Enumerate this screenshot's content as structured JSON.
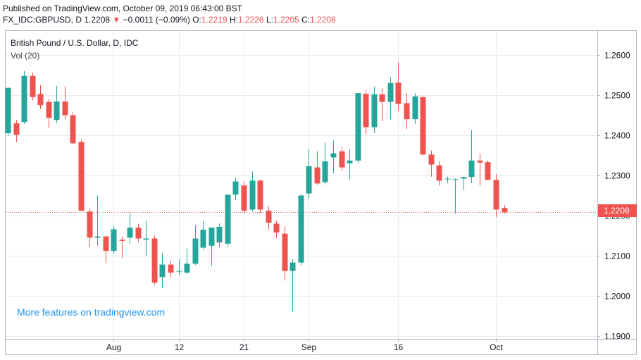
{
  "header": {
    "published": "Published on TradingView.com, October 09, 2019 06:43:00 BST",
    "symbol": "FX_IDC:GBPUSD, D",
    "last": "1.2208",
    "change_arrow": "▼",
    "change": "−0.0011 (−0.09%)",
    "o_label": "O:",
    "o_value": "1.2219",
    "h_label": "H:",
    "h_value": "1.2226",
    "l_label": "L:",
    "l_value": "1.2205",
    "c_label": "C:",
    "c_value": "1.2208"
  },
  "legend": {
    "title": "British Pound / U.S. Dollar, D, IDC",
    "volume": "Vol (20)"
  },
  "watermark": "More features on tradingview.com",
  "last_price_label": "1.2208",
  "colors": {
    "up": "#26a69a",
    "down": "#ef5350",
    "grid": "#e1ecf2",
    "axis": "#5d606b",
    "watermark": "#2196f3"
  },
  "chart_data": {
    "type": "candlestick",
    "title": "British Pound / U.S. Dollar, D, IDC",
    "ylim": [
      1.19,
      1.266
    ],
    "y_ticks": [
      1.19,
      1.2,
      1.21,
      1.22,
      1.23,
      1.24,
      1.25,
      1.26
    ],
    "y_tick_labels": [
      "1.1900",
      "1.2000",
      "1.2100",
      "1.2200",
      "1.2300",
      "1.2400",
      "1.2500",
      "1.2600"
    ],
    "x_ticks": [
      {
        "label": "Aug",
        "index": 13
      },
      {
        "label": "12",
        "index": 21
      },
      {
        "label": "21",
        "index": 29
      },
      {
        "label": "Sep",
        "index": 37
      },
      {
        "label": "16",
        "index": 48
      },
      {
        "label": "Oct",
        "index": 60
      }
    ],
    "last_price": 1.2208,
    "candles": [
      {
        "o": 1.2405,
        "h": 1.252,
        "l": 1.2398,
        "c": 1.2518
      },
      {
        "o": 1.243,
        "h": 1.2438,
        "l": 1.2383,
        "c": 1.2401
      },
      {
        "o": 1.2433,
        "h": 1.256,
        "l": 1.2428,
        "c": 1.2548
      },
      {
        "o": 1.2548,
        "h": 1.2556,
        "l": 1.2487,
        "c": 1.2495
      },
      {
        "o": 1.2503,
        "h": 1.2525,
        "l": 1.2465,
        "c": 1.2475
      },
      {
        "o": 1.2483,
        "h": 1.249,
        "l": 1.2418,
        "c": 1.2443
      },
      {
        "o": 1.2438,
        "h": 1.2523,
        "l": 1.243,
        "c": 1.2484
      },
      {
        "o": 1.2484,
        "h": 1.2522,
        "l": 1.244,
        "c": 1.245
      },
      {
        "o": 1.245,
        "h": 1.2458,
        "l": 1.2378,
        "c": 1.238
      },
      {
        "o": 1.2383,
        "h": 1.239,
        "l": 1.2212,
        "c": 1.2212
      },
      {
        "o": 1.221,
        "h": 1.2218,
        "l": 1.2122,
        "c": 1.2145
      },
      {
        "o": 1.2145,
        "h": 1.225,
        "l": 1.2125,
        "c": 1.2148
      },
      {
        "o": 1.2148,
        "h": 1.215,
        "l": 1.2082,
        "c": 1.2112
      },
      {
        "o": 1.2112,
        "h": 1.2175,
        "l": 1.2105,
        "c": 1.2166
      },
      {
        "o": 1.214,
        "h": 1.2148,
        "l": 1.2095,
        "c": 1.2137
      },
      {
        "o": 1.2145,
        "h": 1.2205,
        "l": 1.213,
        "c": 1.217
      },
      {
        "o": 1.217,
        "h": 1.218,
        "l": 1.2134,
        "c": 1.2143
      },
      {
        "o": 1.214,
        "h": 1.2188,
        "l": 1.21,
        "c": 1.2143
      },
      {
        "o": 1.2143,
        "h": 1.215,
        "l": 1.2028,
        "c": 1.2033
      },
      {
        "o": 1.2047,
        "h": 1.2107,
        "l": 1.202,
        "c": 1.2078
      },
      {
        "o": 1.2078,
        "h": 1.2088,
        "l": 1.2048,
        "c": 1.2058
      },
      {
        "o": 1.2062,
        "h": 1.2092,
        "l": 1.2052,
        "c": 1.2062
      },
      {
        "o": 1.2058,
        "h": 1.2118,
        "l": 1.2053,
        "c": 1.208
      },
      {
        "o": 1.208,
        "h": 1.2176,
        "l": 1.2077,
        "c": 1.2143
      },
      {
        "o": 1.212,
        "h": 1.2186,
        "l": 1.2115,
        "c": 1.2165
      },
      {
        "o": 1.2125,
        "h": 1.217,
        "l": 1.2075,
        "c": 1.217
      },
      {
        "o": 1.2133,
        "h": 1.218,
        "l": 1.212,
        "c": 1.2172
      },
      {
        "o": 1.213,
        "h": 1.225,
        "l": 1.2122,
        "c": 1.2252
      },
      {
        "o": 1.2252,
        "h": 1.2295,
        "l": 1.2238,
        "c": 1.2285
      },
      {
        "o": 1.2275,
        "h": 1.2285,
        "l": 1.2205,
        "c": 1.2212
      },
      {
        "o": 1.2215,
        "h": 1.231,
        "l": 1.221,
        "c": 1.2287
      },
      {
        "o": 1.2287,
        "h": 1.2289,
        "l": 1.2206,
        "c": 1.2215
      },
      {
        "o": 1.2212,
        "h": 1.2223,
        "l": 1.2165,
        "c": 1.2182
      },
      {
        "o": 1.218,
        "h": 1.2187,
        "l": 1.2145,
        "c": 1.2158
      },
      {
        "o": 1.2155,
        "h": 1.2173,
        "l": 1.2038,
        "c": 1.2062
      },
      {
        "o": 1.2062,
        "h": 1.2091,
        "l": 1.1962,
        "c": 1.2083
      },
      {
        "o": 1.2083,
        "h": 1.2253,
        "l": 1.2077,
        "c": 1.225
      },
      {
        "o": 1.2255,
        "h": 1.2365,
        "l": 1.224,
        "c": 1.2323
      },
      {
        "o": 1.232,
        "h": 1.236,
        "l": 1.2277,
        "c": 1.228
      },
      {
        "o": 1.2283,
        "h": 1.2381,
        "l": 1.2277,
        "c": 1.2335
      },
      {
        "o": 1.2345,
        "h": 1.2387,
        "l": 1.2305,
        "c": 1.2355
      },
      {
        "o": 1.236,
        "h": 1.2371,
        "l": 1.2312,
        "c": 1.232
      },
      {
        "o": 1.233,
        "h": 1.2365,
        "l": 1.229,
        "c": 1.2337
      },
      {
        "o": 1.2337,
        "h": 1.2503,
        "l": 1.233,
        "c": 1.2505
      },
      {
        "o": 1.2503,
        "h": 1.2513,
        "l": 1.2402,
        "c": 1.242
      },
      {
        "o": 1.242,
        "h": 1.2521,
        "l": 1.2405,
        "c": 1.2502
      },
      {
        "o": 1.2502,
        "h": 1.2518,
        "l": 1.2435,
        "c": 1.2483
      },
      {
        "o": 1.2483,
        "h": 1.2545,
        "l": 1.244,
        "c": 1.253
      },
      {
        "o": 1.2531,
        "h": 1.2582,
        "l": 1.2462,
        "c": 1.2478
      },
      {
        "o": 1.248,
        "h": 1.2505,
        "l": 1.2415,
        "c": 1.244
      },
      {
        "o": 1.244,
        "h": 1.2505,
        "l": 1.2428,
        "c": 1.2497
      },
      {
        "o": 1.2495,
        "h": 1.2497,
        "l": 1.235,
        "c": 1.2352
      },
      {
        "o": 1.2352,
        "h": 1.2362,
        "l": 1.2297,
        "c": 1.2327
      },
      {
        "o": 1.2325,
        "h": 1.2335,
        "l": 1.2275,
        "c": 1.2287
      },
      {
        "o": 1.2292,
        "h": 1.2297,
        "l": 1.2281,
        "c": 1.2292
      },
      {
        "o": 1.229,
        "h": 1.2292,
        "l": 1.2206,
        "c": 1.2291
      },
      {
        "o": 1.2292,
        "h": 1.229,
        "l": 1.2263,
        "c": 1.2296
      },
      {
        "o": 1.2296,
        "h": 1.2413,
        "l": 1.2281,
        "c": 1.2337
      },
      {
        "o": 1.2337,
        "h": 1.2355,
        "l": 1.2274,
        "c": 1.2332
      },
      {
        "o": 1.2333,
        "h": 1.2337,
        "l": 1.2287,
        "c": 1.2289
      },
      {
        "o": 1.2289,
        "h": 1.2303,
        "l": 1.2196,
        "c": 1.2215
      },
      {
        "o": 1.2219,
        "h": 1.2226,
        "l": 1.2205,
        "c": 1.2208
      }
    ]
  }
}
